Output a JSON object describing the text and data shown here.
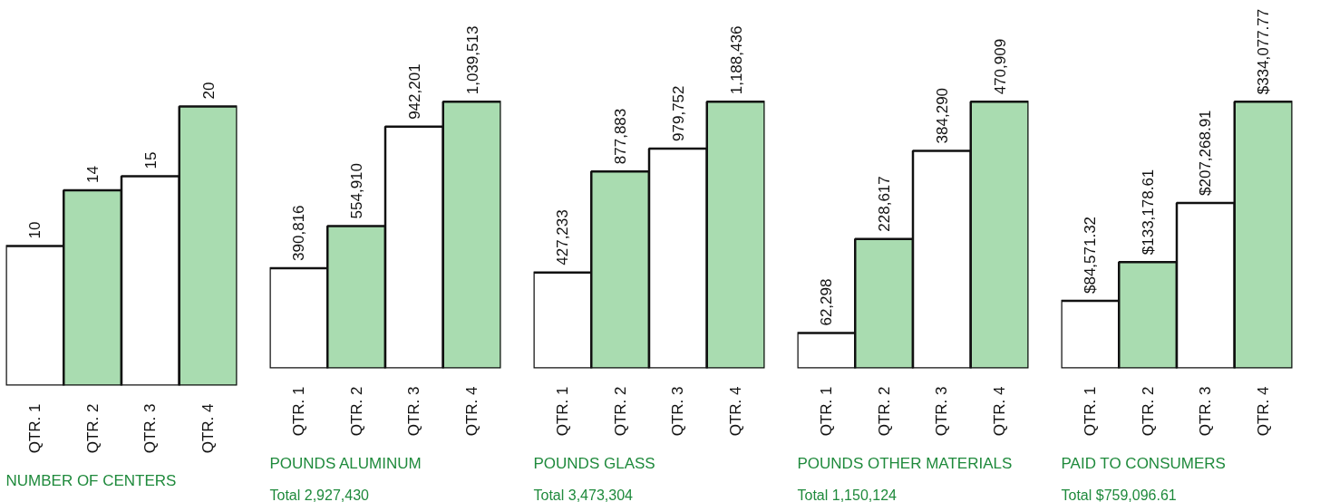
{
  "chart_data": [
    {
      "type": "bar",
      "title": "NUMBER OF CENTERS",
      "categories": [
        "QTR. 1",
        "QTR. 2",
        "QTR. 3",
        "QTR. 4"
      ],
      "values": [
        10,
        14,
        15,
        20
      ],
      "colors": [
        "#ffffff",
        "#a9dcb0",
        "#ffffff",
        "#a9dcb0"
      ],
      "value_labels": [
        "10",
        "14",
        "15",
        "20"
      ]
    },
    {
      "type": "bar",
      "title": "POUNDS ALUMINUM",
      "subtitle": "Total 2,927,430",
      "categories": [
        "QTR. 1",
        "QTR. 2",
        "QTR. 3",
        "QTR. 4"
      ],
      "values": [
        390816,
        554910,
        942201,
        1039513
      ],
      "colors": [
        "#ffffff",
        "#a9dcb0",
        "#ffffff",
        "#a9dcb0"
      ],
      "value_labels": [
        "390,816",
        "554,910",
        "942,201",
        "1,039,513"
      ]
    },
    {
      "type": "bar",
      "title": "POUNDS GLASS",
      "subtitle": "Total 3,473,304",
      "categories": [
        "QTR. 1",
        "QTR. 2",
        "QTR. 3",
        "QTR. 4"
      ],
      "values": [
        427233,
        877883,
        979752,
        1188436
      ],
      "colors": [
        "#ffffff",
        "#a9dcb0",
        "#ffffff",
        "#a9dcb0"
      ],
      "value_labels": [
        "427,233",
        "877,883",
        "979,752",
        "1,188,436"
      ]
    },
    {
      "type": "bar",
      "title": "POUNDS OTHER MATERIALS",
      "subtitle": "Total 1,150,124",
      "categories": [
        "QTR. 1",
        "QTR. 2",
        "QTR. 3",
        "QTR. 4"
      ],
      "values": [
        62298,
        228617,
        384290,
        470909
      ],
      "colors": [
        "#ffffff",
        "#a9dcb0",
        "#ffffff",
        "#a9dcb0"
      ],
      "value_labels": [
        "62,298",
        "228,617",
        "384,290",
        "470,909"
      ]
    },
    {
      "type": "bar",
      "title": "PAID TO CONSUMERS",
      "subtitle": "Total $759,096.61",
      "categories": [
        "QTR. 1",
        "QTR. 2",
        "QTR. 3",
        "QTR. 4"
      ],
      "values": [
        84571.32,
        133178.61,
        207268.91,
        334077.77
      ],
      "colors": [
        "#ffffff",
        "#a9dcb0",
        "#ffffff",
        "#a9dcb0"
      ],
      "value_labels": [
        "$84,571.32",
        "$133,178.61",
        "$207,268.91",
        "$334,077.77"
      ]
    }
  ]
}
